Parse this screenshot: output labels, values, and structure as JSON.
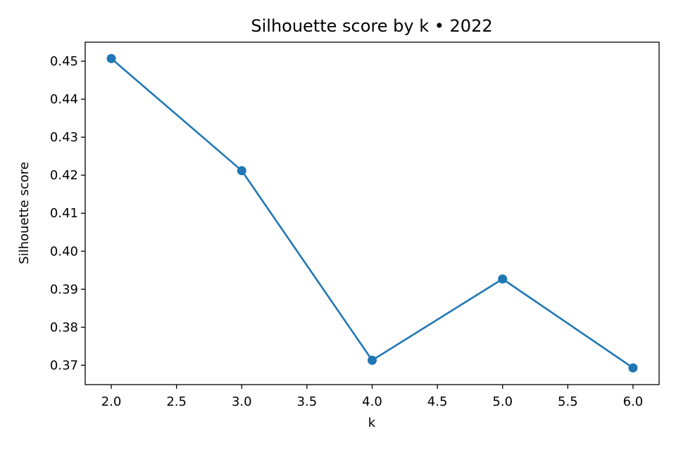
{
  "chart_data": {
    "type": "line",
    "title": "Silhouette score by k • 2022",
    "xlabel": "k",
    "ylabel": "Silhouette score",
    "x": [
      2,
      3,
      4,
      5,
      6
    ],
    "series": [
      {
        "values": [
          0.4507,
          0.4212,
          0.3713,
          0.3927,
          0.3693
        ]
      }
    ],
    "xlim": [
      1.8,
      6.2
    ],
    "ylim": [
      0.3649,
      0.455
    ],
    "xticks": [
      2.0,
      2.5,
      3.0,
      3.5,
      4.0,
      4.5,
      5.0,
      5.5,
      6.0
    ],
    "xtick_labels": [
      "2.0",
      "2.5",
      "3.0",
      "3.5",
      "4.0",
      "4.5",
      "5.0",
      "5.5",
      "6.0"
    ],
    "yticks": [
      0.37,
      0.38,
      0.39,
      0.4,
      0.41,
      0.42,
      0.43,
      0.44,
      0.45
    ],
    "ytick_labels": [
      "0.37",
      "0.38",
      "0.39",
      "0.40",
      "0.41",
      "0.42",
      "0.43",
      "0.44",
      "0.45"
    ],
    "grid": false,
    "markers": true,
    "colors": {
      "series": "#1f77b4",
      "axes": "#000000",
      "background": "#ffffff"
    }
  }
}
